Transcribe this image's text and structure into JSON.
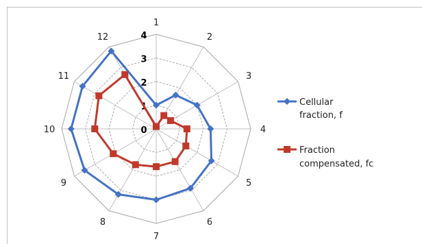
{
  "chart_data": {
    "type": "radar",
    "categories": [
      "1",
      "2",
      "3",
      "4",
      "5",
      "6",
      "7",
      "8",
      "9",
      "10",
      "11",
      "12"
    ],
    "rlim": [
      0,
      4
    ],
    "ticks": [
      "0",
      "1",
      "2",
      "3",
      "4"
    ],
    "grid": true,
    "legend_position": "right",
    "series": [
      {
        "name": "Cellular fraction, f",
        "legend_lines": [
          "Cellular",
          "fraction, f"
        ],
        "color": "#4472C4",
        "marker": "diamond",
        "values": [
          1.0,
          1.65,
          2.0,
          2.3,
          2.7,
          2.9,
          3.0,
          3.2,
          3.5,
          3.6,
          3.6,
          3.8
        ]
      },
      {
        "name": "Fraction compensated, fc",
        "legend_lines": [
          "Fraction",
          "compensated,  fc"
        ],
        "color": "#C0392B",
        "marker": "square",
        "values": [
          0.1,
          0.65,
          0.7,
          1.3,
          1.45,
          1.6,
          1.6,
          1.75,
          2.1,
          2.6,
          2.8,
          2.65
        ]
      }
    ]
  }
}
